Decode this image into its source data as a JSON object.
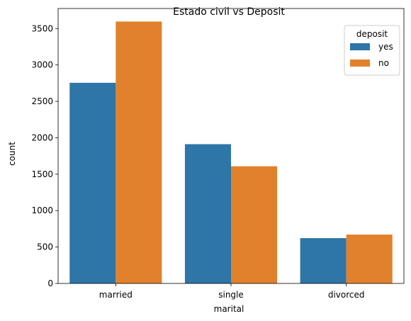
{
  "chart_data": {
    "type": "bar",
    "title": "Estado civil vs Deposit",
    "xlabel": "marital",
    "ylabel": "count",
    "categories": [
      "married",
      "single",
      "divorced"
    ],
    "series": [
      {
        "name": "yes",
        "color": "#2e75a8",
        "values": [
          2755,
          1912,
          622
        ]
      },
      {
        "name": "no",
        "color": "#e1812c",
        "values": [
          3596,
          1609,
          671
        ]
      }
    ],
    "ylim": [
      0,
      3775
    ],
    "yticks": [
      0,
      500,
      1000,
      1500,
      2000,
      2500,
      3000,
      3500
    ],
    "legend": {
      "title": "deposit",
      "placement": "top-right"
    },
    "grid": false
  }
}
